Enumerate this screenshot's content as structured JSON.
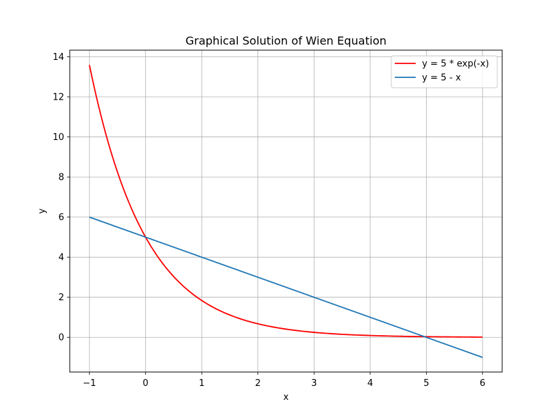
{
  "chart_data": {
    "type": "line",
    "title": "Graphical Solution of Wien Equation",
    "xlabel": "x",
    "ylabel": "y",
    "xlim": [
      -1.35,
      6.35
    ],
    "ylim": [
      -1.73,
      14.33
    ],
    "xticks": [
      -1,
      0,
      1,
      2,
      3,
      4,
      5,
      6
    ],
    "xtick_labels": [
      "−1",
      "0",
      "1",
      "2",
      "3",
      "4",
      "5",
      "6"
    ],
    "yticks": [
      0,
      2,
      4,
      6,
      8,
      10,
      12,
      14
    ],
    "ytick_labels": [
      "0",
      "2",
      "4",
      "6",
      "8",
      "10",
      "12",
      "14"
    ],
    "grid": true,
    "legend_position": "top-right",
    "series": [
      {
        "name": "y = 5 * exp(-x)",
        "color": "#ff0000",
        "x": [
          -1,
          -0.75,
          -0.5,
          -0.25,
          0,
          0.25,
          0.5,
          0.75,
          1,
          1.5,
          2,
          2.5,
          3,
          3.5,
          4,
          4.5,
          5,
          5.5,
          6
        ],
        "y": [
          13.59,
          10.59,
          8.24,
          6.42,
          5.0,
          3.89,
          3.03,
          2.36,
          1.84,
          1.12,
          0.68,
          0.41,
          0.25,
          0.15,
          0.09,
          0.06,
          0.03,
          0.02,
          0.01
        ]
      },
      {
        "name": "y = 5 - x",
        "color": "#1f77b4",
        "x": [
          -1,
          6
        ],
        "y": [
          6,
          -1
        ]
      }
    ]
  }
}
